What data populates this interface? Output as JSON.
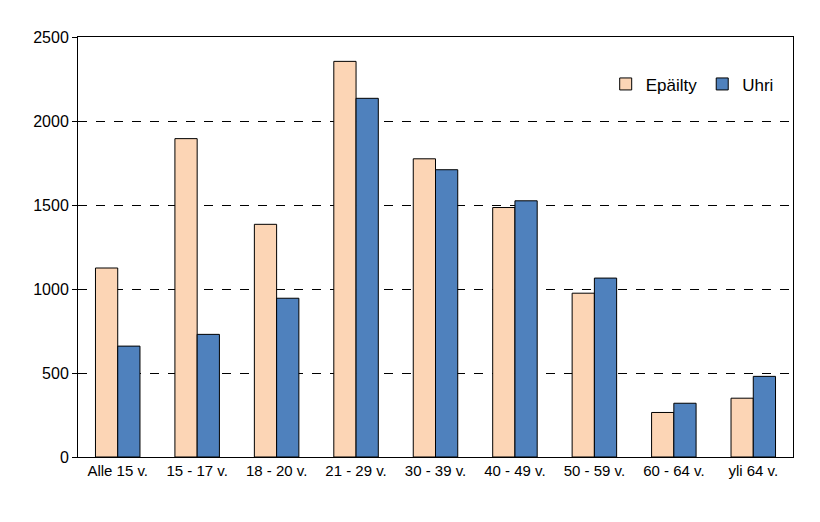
{
  "chart_data": {
    "type": "bar",
    "categories": [
      "Alle 15 v.",
      "15 - 17 v.",
      "18 - 20 v.",
      "21 - 29 v.",
      "30 - 39 v.",
      "40 - 49 v.",
      "50 - 59 v.",
      "60 - 64 v.",
      "yli 64 v."
    ],
    "series": [
      {
        "name": "Epäilty",
        "color": "#fcd5b5",
        "values": [
          1125,
          1895,
          1385,
          2355,
          1775,
          1485,
          975,
          265,
          350
        ]
      },
      {
        "name": "Uhri",
        "color": "#4f81bd",
        "values": [
          660,
          730,
          945,
          2135,
          1710,
          1525,
          1065,
          320,
          480
        ]
      }
    ],
    "ylim": [
      0,
      2500
    ],
    "yticks": [
      0,
      500,
      1000,
      1500,
      2000,
      2500
    ],
    "grid": true,
    "legend": "top-right"
  }
}
